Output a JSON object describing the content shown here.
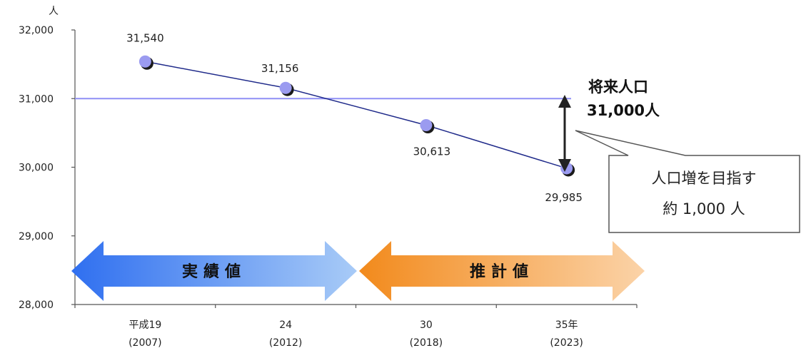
{
  "chart_data": {
    "type": "line",
    "y_unit": "人",
    "ylim": [
      28000,
      32000
    ],
    "y_ticks": [
      "32,000",
      "31,000",
      "30,000",
      "29,000",
      "28,000"
    ],
    "y_tick_values": [
      32000,
      31000,
      30000,
      29000,
      28000
    ],
    "categories": [
      {
        "line1": "平成19",
        "line2": "(2007)"
      },
      {
        "line1": "24",
        "line2": "(2012)"
      },
      {
        "line1": "30",
        "line2": "(2018)"
      },
      {
        "line1": "35年",
        "line2": "(2023)"
      }
    ],
    "series": [
      {
        "values": [
          31540,
          31156,
          30613,
          29985
        ],
        "labels": [
          "31,540",
          "31,156",
          "30,613",
          "29,985"
        ]
      }
    ],
    "reference_line": {
      "value": 31000,
      "label_line1": "将来人口",
      "label_line2": "31,000人"
    },
    "callout": {
      "line1": "人口増を目指す",
      "line2": "約 1,000 人"
    },
    "periods": [
      {
        "label": "実績値",
        "from_category": 0,
        "to_category": 1
      },
      {
        "label": "推計値",
        "from_category": 2,
        "to_category": 3
      }
    ],
    "colors": {
      "line": "#1f2a8a",
      "marker": "#9b9bf0",
      "reference": "#8f8ff5",
      "actual_dark": "#2f6ff0",
      "actual_light": "#a8cbf7",
      "forecast_dark": "#f28a1c",
      "forecast_light": "#fbd3a8"
    }
  }
}
